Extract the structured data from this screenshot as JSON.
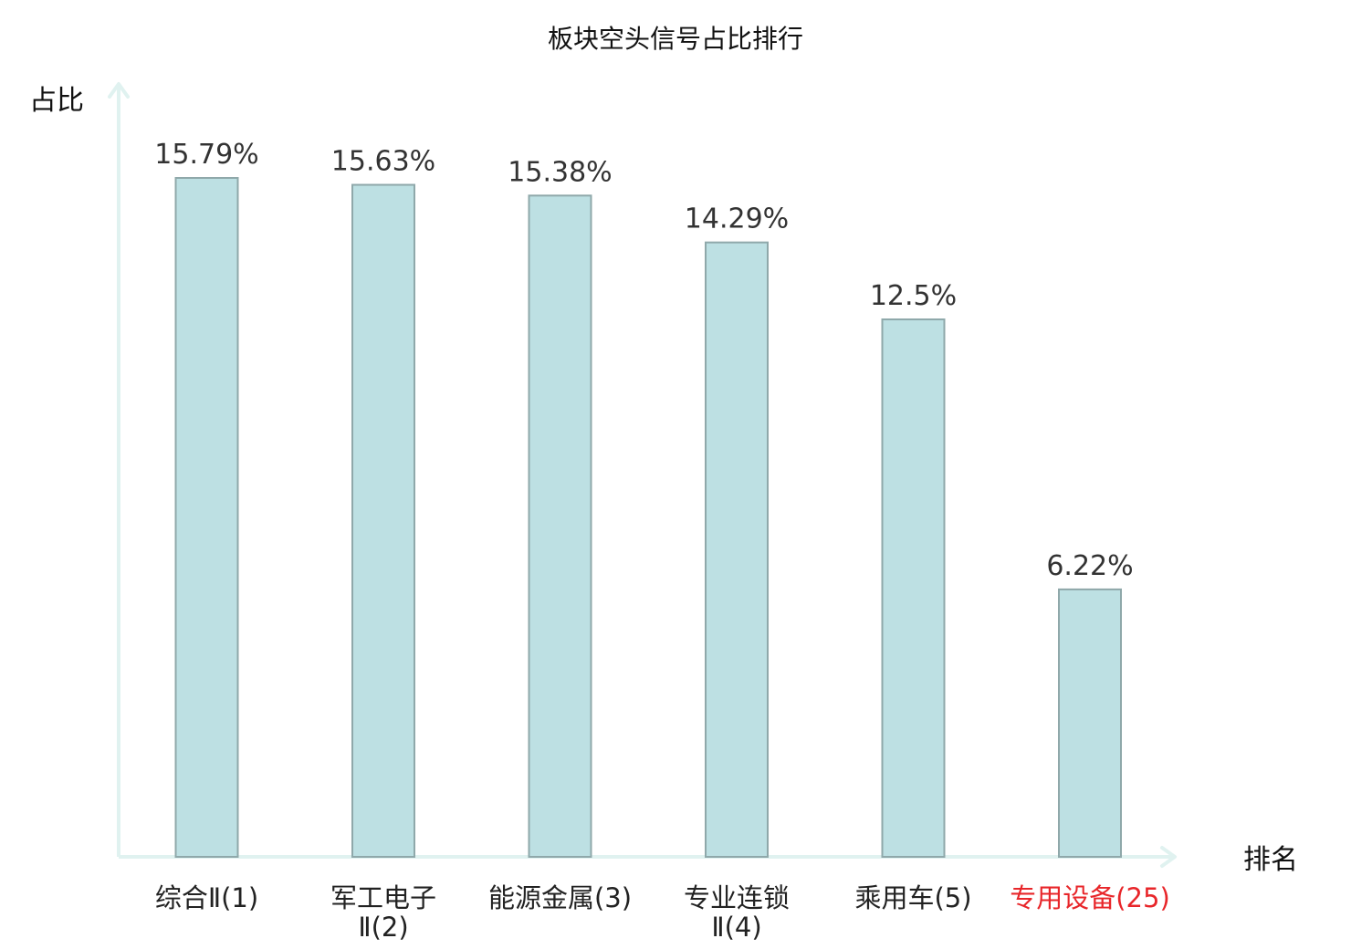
{
  "chart_data": {
    "type": "bar",
    "title": "板块空头信号占比排行",
    "ylabel": "占比",
    "xlabel": "排名",
    "categories": [
      {
        "lines": [
          "综合Ⅱ(1)"
        ],
        "highlight": false
      },
      {
        "lines": [
          "军工电子",
          "Ⅱ(2)"
        ],
        "highlight": false
      },
      {
        "lines": [
          "能源金属(3)"
        ],
        "highlight": false
      },
      {
        "lines": [
          "专业连锁",
          "Ⅱ(4)"
        ],
        "highlight": false
      },
      {
        "lines": [
          "乘用车(5)"
        ],
        "highlight": false
      },
      {
        "lines": [
          "专用设备(25)"
        ],
        "highlight": true
      }
    ],
    "values": [
      15.79,
      15.63,
      15.38,
      14.29,
      12.5,
      6.22
    ],
    "value_labels": [
      "15.79%",
      "15.63%",
      "15.38%",
      "14.29%",
      "12.5%",
      "6.22%"
    ],
    "ylim": [
      0,
      16
    ],
    "grid": false,
    "legend": "none",
    "colors": {
      "bar_fill": "#bde0e3",
      "bar_stroke": "#8fa8aa",
      "axis": "#e0f2f0",
      "highlight_text": "#e8262a",
      "normal_text": "#222222"
    }
  }
}
